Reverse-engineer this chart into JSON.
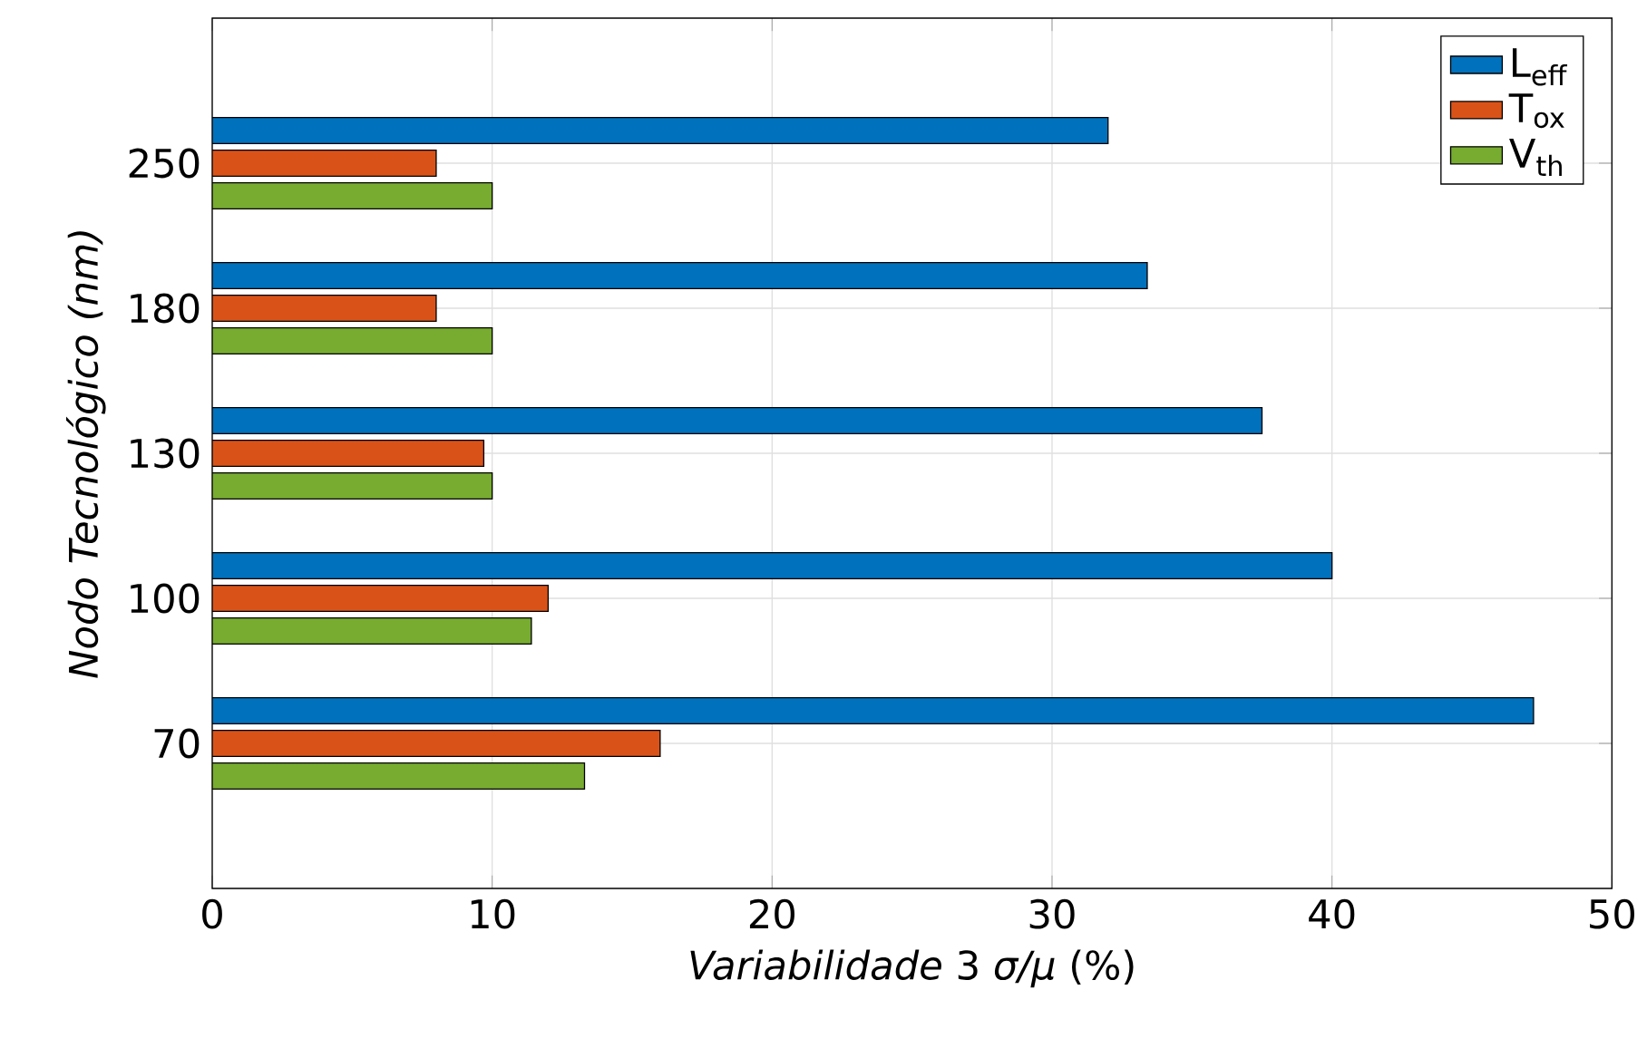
{
  "chart_data": {
    "type": "bar",
    "orientation": "horizontal",
    "xlabel": "*Variabilidade* 3 *σ/μ* (%)",
    "ylabel": "Nodo Tecnológico (nm)",
    "categories": [
      "250",
      "180",
      "130",
      "100",
      "70"
    ],
    "series": [
      {
        "name": "L$_{eff}$",
        "color": "#0072bd",
        "values": [
          32,
          33.4,
          37.5,
          40,
          47.2
        ]
      },
      {
        "name": "T$_{ox}$",
        "color": "#d95319",
        "values": [
          8,
          8,
          9.7,
          12,
          16
        ]
      },
      {
        "name": "V$_{th}$",
        "color": "#77ac30",
        "values": [
          10,
          10,
          10,
          11.4,
          13.3
        ]
      }
    ],
    "xlim": [
      0,
      50
    ],
    "xticks": [
      0,
      10,
      20,
      30,
      40,
      50
    ],
    "grid": true,
    "legend": "top right"
  }
}
